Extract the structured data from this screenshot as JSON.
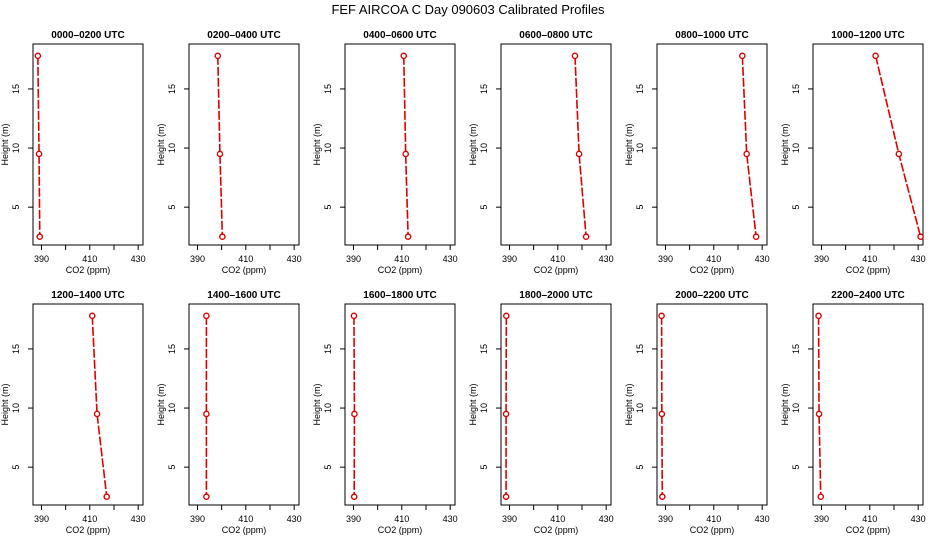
{
  "page_title": "FEF AIRCOA C  Day 090603  Calibrated Profiles",
  "colors": {
    "profile": "#dd0000",
    "axis": "#000000"
  },
  "chart_data": [
    {
      "type": "line",
      "title": "0000–0200 UTC",
      "xlabel": "CO2 (ppm)",
      "ylabel": "Height (m)",
      "xlim": [
        386.5,
        432
      ],
      "ylim": [
        1.8,
        18.8
      ],
      "xticks": [
        390,
        400,
        410,
        420,
        430
      ],
      "xtick_labels": [
        "390",
        "410",
        "430"
      ],
      "yticks": [
        5,
        10,
        15
      ],
      "x": [
        388.5,
        389.0,
        389.3
      ],
      "y": [
        17.8,
        9.5,
        2.5
      ]
    },
    {
      "type": "line",
      "title": "0200–0400 UTC",
      "xlabel": "CO2 (ppm)",
      "ylabel": "Height (m)",
      "xlim": [
        386.5,
        432
      ],
      "ylim": [
        1.8,
        18.8
      ],
      "xticks": [
        390,
        400,
        410,
        420,
        430
      ],
      "xtick_labels": [
        "390",
        "410",
        "430"
      ],
      "yticks": [
        5,
        10,
        15
      ],
      "x": [
        398.4,
        399.3,
        400.3
      ],
      "y": [
        17.8,
        9.5,
        2.5
      ]
    },
    {
      "type": "line",
      "title": "0400–0600 UTC",
      "xlabel": "CO2 (ppm)",
      "ylabel": "Height (m)",
      "xlim": [
        386.5,
        432
      ],
      "ylim": [
        1.8,
        18.8
      ],
      "xticks": [
        390,
        400,
        410,
        420,
        430
      ],
      "xtick_labels": [
        "390",
        "410",
        "430"
      ],
      "yticks": [
        5,
        10,
        15
      ],
      "x": [
        410.8,
        411.6,
        412.6
      ],
      "y": [
        17.8,
        9.5,
        2.5
      ]
    },
    {
      "type": "line",
      "title": "0600–0800 UTC",
      "xlabel": "CO2 (ppm)",
      "ylabel": "Height (m)",
      "xlim": [
        386.5,
        432
      ],
      "ylim": [
        1.8,
        18.8
      ],
      "xticks": [
        390,
        400,
        410,
        420,
        430
      ],
      "xtick_labels": [
        "390",
        "410",
        "430"
      ],
      "yticks": [
        5,
        10,
        15
      ],
      "x": [
        417.1,
        418.8,
        421.7
      ],
      "y": [
        17.8,
        9.5,
        2.5
      ]
    },
    {
      "type": "line",
      "title": "0800–1000 UTC",
      "xlabel": "CO2 (ppm)",
      "ylabel": "Height (m)",
      "xlim": [
        386.5,
        432
      ],
      "ylim": [
        1.8,
        18.8
      ],
      "xticks": [
        390,
        400,
        410,
        420,
        430
      ],
      "xtick_labels": [
        "390",
        "410",
        "430"
      ],
      "yticks": [
        5,
        10,
        15
      ],
      "x": [
        421.8,
        423.6,
        427.5
      ],
      "y": [
        17.8,
        9.5,
        2.5
      ]
    },
    {
      "type": "line",
      "title": "1000–1200 UTC",
      "xlabel": "CO2 (ppm)",
      "ylabel": "Height (m)",
      "xlim": [
        386.5,
        432
      ],
      "ylim": [
        1.8,
        18.8
      ],
      "xticks": [
        390,
        400,
        410,
        420,
        430
      ],
      "xtick_labels": [
        "390",
        "410",
        "430"
      ],
      "yticks": [
        5,
        10,
        15
      ],
      "x": [
        412.4,
        422.0,
        431.0
      ],
      "y": [
        17.8,
        9.5,
        2.5
      ]
    },
    {
      "type": "line",
      "title": "1200–1400 UTC",
      "xlabel": "CO2 (ppm)",
      "ylabel": "Height (m)",
      "xlim": [
        386.5,
        432
      ],
      "ylim": [
        1.8,
        18.8
      ],
      "xticks": [
        390,
        400,
        410,
        420,
        430
      ],
      "xtick_labels": [
        "390",
        "410",
        "430"
      ],
      "yticks": [
        5,
        10,
        15
      ],
      "x": [
        411.0,
        413.0,
        417.0
      ],
      "y": [
        17.8,
        9.5,
        2.5
      ]
    },
    {
      "type": "line",
      "title": "1400–1600 UTC",
      "xlabel": "CO2 (ppm)",
      "ylabel": "Height (m)",
      "xlim": [
        386.5,
        432
      ],
      "ylim": [
        1.8,
        18.8
      ],
      "xticks": [
        390,
        400,
        410,
        420,
        430
      ],
      "xtick_labels": [
        "390",
        "410",
        "430"
      ],
      "yticks": [
        5,
        10,
        15
      ],
      "x": [
        393.7,
        393.7,
        393.7
      ],
      "y": [
        17.8,
        9.5,
        2.5
      ]
    },
    {
      "type": "line",
      "title": "1600–1800 UTC",
      "xlabel": "CO2 (ppm)",
      "ylabel": "Height (m)",
      "xlim": [
        386.5,
        432
      ],
      "ylim": [
        1.8,
        18.8
      ],
      "xticks": [
        390,
        400,
        410,
        420,
        430
      ],
      "xtick_labels": [
        "390",
        "410",
        "430"
      ],
      "yticks": [
        5,
        10,
        15
      ],
      "x": [
        390.2,
        390.4,
        390.3
      ],
      "y": [
        17.8,
        9.5,
        2.5
      ]
    },
    {
      "type": "line",
      "title": "1800–2000 UTC",
      "xlabel": "CO2 (ppm)",
      "ylabel": "Height (m)",
      "xlim": [
        386.5,
        432
      ],
      "ylim": [
        1.8,
        18.8
      ],
      "xticks": [
        390,
        400,
        410,
        420,
        430
      ],
      "xtick_labels": [
        "390",
        "410",
        "430"
      ],
      "yticks": [
        5,
        10,
        15
      ],
      "x": [
        388.7,
        388.6,
        388.6
      ],
      "y": [
        17.8,
        9.5,
        2.5
      ]
    },
    {
      "type": "line",
      "title": "2000–2200 UTC",
      "xlabel": "CO2 (ppm)",
      "ylabel": "Height (m)",
      "xlim": [
        386.5,
        432
      ],
      "ylim": [
        1.8,
        18.8
      ],
      "xticks": [
        390,
        400,
        410,
        420,
        430
      ],
      "xtick_labels": [
        "390",
        "410",
        "430"
      ],
      "yticks": [
        5,
        10,
        15
      ],
      "x": [
        388.4,
        388.5,
        388.7
      ],
      "y": [
        17.8,
        9.5,
        2.5
      ]
    },
    {
      "type": "line",
      "title": "2200–2400 UTC",
      "xlabel": "CO2 (ppm)",
      "ylabel": "Height (m)",
      "xlim": [
        386.5,
        432
      ],
      "ylim": [
        1.8,
        18.8
      ],
      "xticks": [
        390,
        400,
        410,
        420,
        430
      ],
      "xtick_labels": [
        "390",
        "410",
        "430"
      ],
      "yticks": [
        5,
        10,
        15
      ],
      "x": [
        388.8,
        389.0,
        389.7
      ],
      "y": [
        17.8,
        9.5,
        2.5
      ]
    }
  ]
}
